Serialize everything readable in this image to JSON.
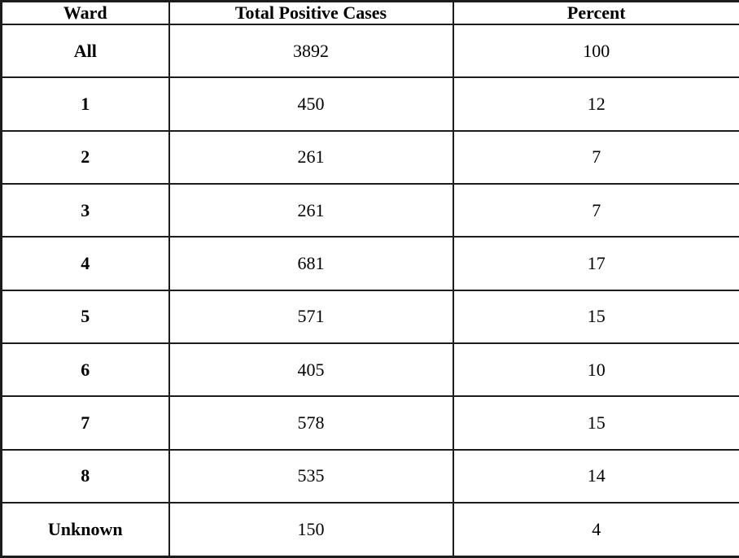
{
  "table": {
    "columns": [
      "Ward",
      "Total Positive Cases",
      "Percent"
    ],
    "rows": [
      [
        "All",
        "3892",
        "100"
      ],
      [
        "1",
        "450",
        "12"
      ],
      [
        "2",
        "261",
        "7"
      ],
      [
        "3",
        "261",
        "7"
      ],
      [
        "4",
        "681",
        "17"
      ],
      [
        "5",
        "571",
        "15"
      ],
      [
        "6",
        "405",
        "10"
      ],
      [
        "7",
        "578",
        "15"
      ],
      [
        "8",
        "535",
        "14"
      ],
      [
        "Unknown",
        "150",
        "4"
      ]
    ]
  },
  "chart_data": {
    "type": "table",
    "title": "",
    "columns": [
      "Ward",
      "Total Positive Cases",
      "Percent"
    ],
    "rows": [
      {
        "ward": "All",
        "total_positive_cases": 3892,
        "percent": 100
      },
      {
        "ward": "1",
        "total_positive_cases": 450,
        "percent": 12
      },
      {
        "ward": "2",
        "total_positive_cases": 261,
        "percent": 7
      },
      {
        "ward": "3",
        "total_positive_cases": 261,
        "percent": 7
      },
      {
        "ward": "4",
        "total_positive_cases": 681,
        "percent": 17
      },
      {
        "ward": "5",
        "total_positive_cases": 571,
        "percent": 15
      },
      {
        "ward": "6",
        "total_positive_cases": 405,
        "percent": 10
      },
      {
        "ward": "7",
        "total_positive_cases": 578,
        "percent": 15
      },
      {
        "ward": "8",
        "total_positive_cases": 535,
        "percent": 14
      },
      {
        "ward": "Unknown",
        "total_positive_cases": 150,
        "percent": 4
      }
    ],
    "layout_hints": {
      "header_bold": true,
      "first_column_bold": true,
      "alignment": "center",
      "grid": "all-borders",
      "border_color": "#1c1c1c",
      "background": "#ffffff"
    }
  },
  "colors": {
    "border": "#1c1c1c",
    "text": "#000000",
    "background": "#ffffff"
  }
}
